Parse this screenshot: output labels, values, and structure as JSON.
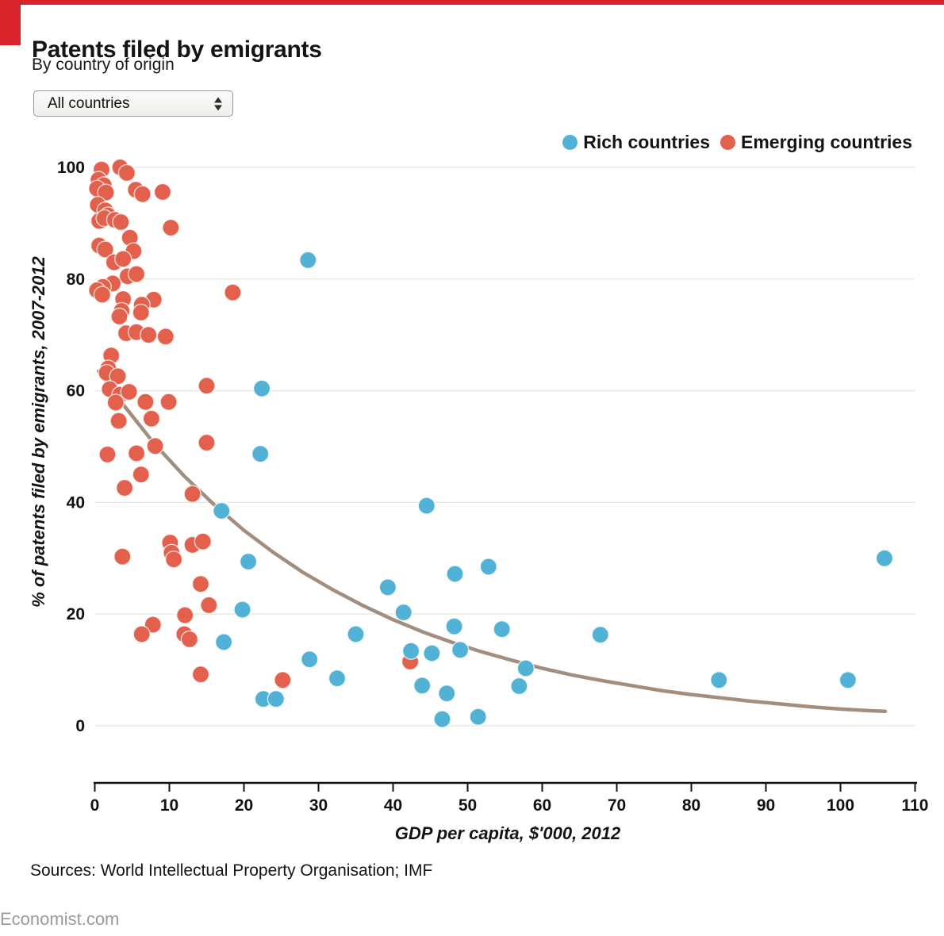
{
  "style": {
    "accent_red": "#D9232A",
    "dot_blue": "#52B2D6",
    "dot_red": "#E2604C",
    "trend_color": "#A28E7E",
    "gridline": "#E4E4E2",
    "axis_color": "#111111",
    "muted_text": "#9A9A9A"
  },
  "header": {
    "title": "Patents filed by emigrants",
    "subtitle": "By country of origin"
  },
  "controls": {
    "country_filter": {
      "value": "All countries",
      "icon": "up-down-arrows-icon"
    }
  },
  "legend": [
    {
      "id": "rich",
      "label": "Rich countries",
      "color": "#52B2D6"
    },
    {
      "id": "emerging",
      "label": "Emerging countries",
      "color": "#E2604C"
    }
  ],
  "footer": {
    "sources": "Sources: World Intellectual Property Organisation; IMF",
    "site": "Economist.com"
  },
  "chart_data": {
    "type": "scatter",
    "title": "Patents filed by emigrants",
    "xlabel": "GDP per capita, $'000, 2012",
    "ylabel": "% of patents filed by emigrants, 2007-2012",
    "xlim": [
      0,
      110
    ],
    "ylim": [
      0,
      100
    ],
    "x_ticks": [
      0,
      10,
      20,
      30,
      40,
      50,
      60,
      70,
      80,
      90,
      100,
      110
    ],
    "y_ticks": [
      0,
      20,
      40,
      60,
      80,
      100
    ],
    "grid": "horizontal",
    "legend_position": "top-right",
    "series": [
      {
        "id": "rich",
        "name": "Rich countries",
        "color": "#52B2D6",
        "points": [
          [
            28.6,
            83.4
          ],
          [
            22.4,
            60.4
          ],
          [
            22.2,
            48.7
          ],
          [
            17,
            38.5
          ],
          [
            20.6,
            29.4
          ],
          [
            44.5,
            39.4
          ],
          [
            39.3,
            24.8
          ],
          [
            48.3,
            27.2
          ],
          [
            52.8,
            28.5
          ],
          [
            41.4,
            20.3
          ],
          [
            48.2,
            17.8
          ],
          [
            35,
            16.4
          ],
          [
            54.6,
            17.3
          ],
          [
            17.3,
            15
          ],
          [
            19.8,
            20.8
          ],
          [
            42.4,
            13.4
          ],
          [
            45.2,
            13
          ],
          [
            49,
            13.6
          ],
          [
            28.8,
            11.9
          ],
          [
            32.5,
            8.5
          ],
          [
            43.9,
            7.2
          ],
          [
            47.2,
            5.8
          ],
          [
            22.6,
            4.8
          ],
          [
            24.3,
            4.8
          ],
          [
            46.6,
            1.2
          ],
          [
            51.4,
            1.6
          ],
          [
            57.8,
            10.3
          ],
          [
            56.9,
            7.1
          ],
          [
            67.8,
            16.3
          ],
          [
            83.7,
            8.2
          ],
          [
            101,
            8.2
          ],
          [
            105.9,
            30
          ]
        ]
      },
      {
        "id": "emerging",
        "name": "Emerging countries",
        "color": "#E2604C",
        "points": [
          [
            0.9,
            99.6
          ],
          [
            3.4,
            100
          ],
          [
            4.3,
            99
          ],
          [
            0.5,
            97.8
          ],
          [
            1.2,
            96.8
          ],
          [
            0.3,
            96.2
          ],
          [
            1.5,
            95.5
          ],
          [
            5.5,
            96
          ],
          [
            6.4,
            95.2
          ],
          [
            9.1,
            95.6
          ],
          [
            0.4,
            93.3
          ],
          [
            1.4,
            92.3
          ],
          [
            1.8,
            91.4
          ],
          [
            0.6,
            90.4
          ],
          [
            1.3,
            90.9
          ],
          [
            2.7,
            90.6
          ],
          [
            3.5,
            90.2
          ],
          [
            10.2,
            89.2
          ],
          [
            4.7,
            87.4
          ],
          [
            0.6,
            86
          ],
          [
            1.4,
            85.3
          ],
          [
            5.2,
            85
          ],
          [
            2.6,
            83
          ],
          [
            3.8,
            83.6
          ],
          [
            4.4,
            80.5
          ],
          [
            5.6,
            80.9
          ],
          [
            2.4,
            79.2
          ],
          [
            1.1,
            78.6
          ],
          [
            0.3,
            78
          ],
          [
            1,
            77.2
          ],
          [
            3.8,
            76.4
          ],
          [
            7.9,
            76.3
          ],
          [
            18.5,
            77.6
          ],
          [
            3.6,
            74.3
          ],
          [
            6.3,
            75.4
          ],
          [
            3.3,
            73.3
          ],
          [
            6.2,
            74
          ],
          [
            4.2,
            70.3
          ],
          [
            5.6,
            70.5
          ],
          [
            7.2,
            70
          ],
          [
            9.5,
            69.7
          ],
          [
            2.2,
            66.3
          ],
          [
            1.8,
            64
          ],
          [
            1.6,
            63.2
          ],
          [
            3.1,
            62.6
          ],
          [
            2,
            60.3
          ],
          [
            3.4,
            59.3
          ],
          [
            4.6,
            59.8
          ],
          [
            2.8,
            57.9
          ],
          [
            6.8,
            58
          ],
          [
            9.9,
            58
          ],
          [
            15,
            60.9
          ],
          [
            3.2,
            54.6
          ],
          [
            7.6,
            55
          ],
          [
            8.1,
            50.1
          ],
          [
            15,
            50.7
          ],
          [
            1.7,
            48.6
          ],
          [
            5.6,
            48.8
          ],
          [
            6.2,
            45
          ],
          [
            4,
            42.6
          ],
          [
            13.1,
            41.5
          ],
          [
            3.7,
            30.3
          ],
          [
            10.1,
            32.8
          ],
          [
            10.3,
            31
          ],
          [
            10.6,
            29.8
          ],
          [
            13.1,
            32.4
          ],
          [
            14.5,
            33
          ],
          [
            14.2,
            25.4
          ],
          [
            15.3,
            21.6
          ],
          [
            12.1,
            19.8
          ],
          [
            7.8,
            18.1
          ],
          [
            6.3,
            16.4
          ],
          [
            12,
            16.4
          ],
          [
            12.7,
            15.5
          ],
          [
            14.2,
            9.2
          ],
          [
            25.2,
            8.2
          ],
          [
            42.3,
            11.5
          ]
        ]
      }
    ],
    "trend": {
      "name": "trend-line",
      "color": "#A28E7E",
      "points": [
        [
          0.5,
          63.5
        ],
        [
          4,
          57.2
        ],
        [
          8,
          50.5
        ],
        [
          12,
          44.7
        ],
        [
          16,
          39.6
        ],
        [
          20,
          35
        ],
        [
          24,
          31
        ],
        [
          28,
          27.4
        ],
        [
          32,
          24.3
        ],
        [
          36,
          21.5
        ],
        [
          40,
          19
        ],
        [
          44,
          16.8
        ],
        [
          48,
          14.9
        ],
        [
          52,
          13.2
        ],
        [
          56,
          11.7
        ],
        [
          60,
          10.3
        ],
        [
          64,
          9.1
        ],
        [
          68,
          8.1
        ],
        [
          72,
          7.2
        ],
        [
          76,
          6.3
        ],
        [
          80,
          5.6
        ],
        [
          84,
          5
        ],
        [
          88,
          4.4
        ],
        [
          92,
          3.9
        ],
        [
          96,
          3.4
        ],
        [
          100,
          3
        ],
        [
          104,
          2.7
        ],
        [
          106,
          2.6
        ]
      ]
    }
  }
}
